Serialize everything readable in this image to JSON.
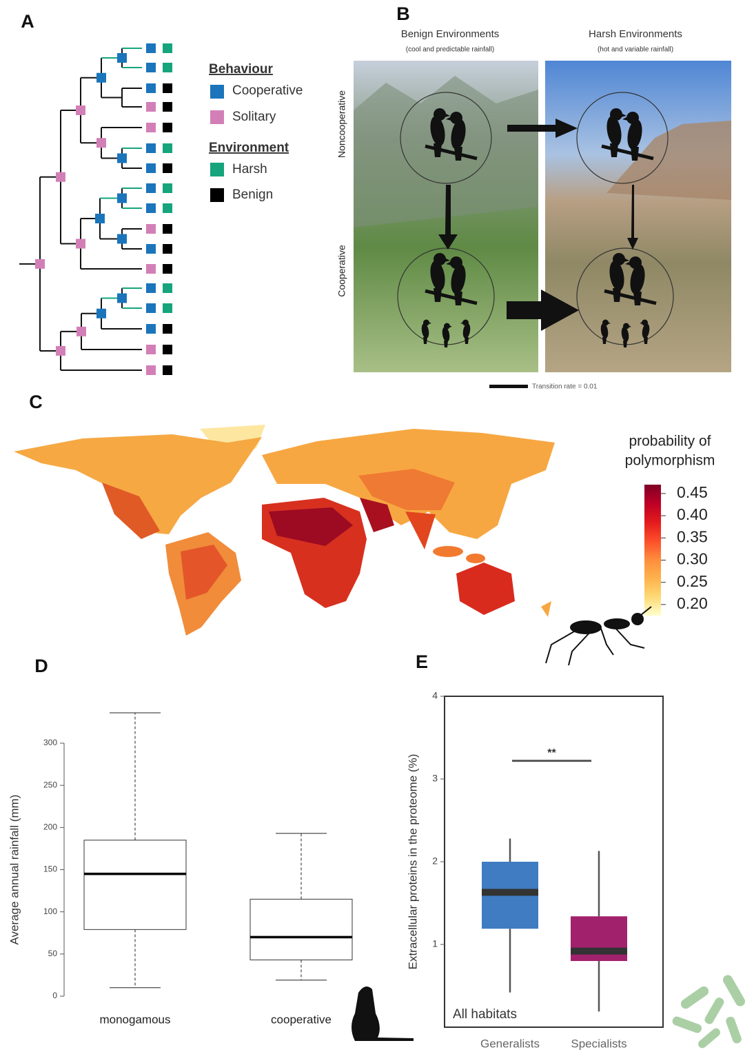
{
  "panel_labels": [
    "A",
    "B",
    "C",
    "D",
    "E"
  ],
  "tree": {
    "legend": {
      "behaviour": {
        "title": "Behaviour",
        "items": [
          {
            "label": "Cooperative",
            "color": "#1b75bb"
          },
          {
            "label": "Solitary",
            "color": "#d37fb7"
          }
        ]
      },
      "environment": {
        "title": "Environment",
        "items": [
          {
            "label": "Harsh",
            "color": "#16a47c"
          },
          {
            "label": "Benign",
            "color": "#000000"
          }
        ]
      }
    },
    "tips": [
      [
        "Cooperative",
        "Harsh"
      ],
      [
        "Cooperative",
        "Harsh"
      ],
      [
        "Cooperative",
        "Benign"
      ],
      [
        "Solitary",
        "Benign"
      ],
      [
        "Solitary",
        "Benign"
      ],
      [
        "Cooperative",
        "Harsh"
      ],
      [
        "Cooperative",
        "Benign"
      ],
      [
        "Cooperative",
        "Harsh"
      ],
      [
        "Cooperative",
        "Harsh"
      ],
      [
        "Solitary",
        "Benign"
      ],
      [
        "Cooperative",
        "Benign"
      ],
      [
        "Solitary",
        "Benign"
      ],
      [
        "Cooperative",
        "Harsh"
      ],
      [
        "Cooperative",
        "Harsh"
      ],
      [
        "Cooperative",
        "Benign"
      ],
      [
        "Solitary",
        "Benign"
      ],
      [
        "Solitary",
        "Benign"
      ]
    ],
    "node_behaviour": [
      "Solitary",
      "Solitary",
      "Solitary",
      "Cooperative",
      "Cooperative",
      "Solitary",
      "Cooperative",
      "Solitary",
      "Cooperative",
      "Cooperative",
      "Cooperative",
      "Solitary",
      "Solitary",
      "Cooperative",
      "Cooperative"
    ]
  },
  "transition_diagram": {
    "columns": [
      {
        "title": "Benign Environments",
        "subtitle": "(cool and predictable rainfall)"
      },
      {
        "title": "Harsh Environments",
        "subtitle": "(hot and variable rainfall)"
      }
    ],
    "rows": [
      "Noncooperative",
      "Cooperative"
    ],
    "scale_label": "Transition rate = 0.01"
  },
  "map": {
    "colorbar": {
      "title": [
        "probability of",
        "polymorphism"
      ],
      "range": [
        0.175,
        0.47
      ],
      "colors": [
        "#ffffcc",
        "#fed976",
        "#feb24c",
        "#fd8d3c",
        "#fc4e2a",
        "#e31a1c",
        "#bd0026",
        "#800026"
      ],
      "ticks": [
        0.45,
        {
          "value": 0.4,
          "label": "0.40"
        },
        0.35,
        {
          "value": 0.3,
          "label": "0.30"
        },
        0.25,
        {
          "value": 0.2,
          "label": "0.20"
        }
      ]
    }
  },
  "chart_data": [
    {
      "type": "box",
      "ylabel": "Average annual rainfall (mm)",
      "categories": [
        "monogamous",
        "cooperative"
      ],
      "stats": [
        {
          "whisker_low": 10,
          "q1": 79,
          "median": 145,
          "q3": 185,
          "whisker_high": 336
        },
        {
          "whisker_low": 19,
          "q1": 43,
          "median": 70,
          "q3": 115,
          "whisker_high": 193
        }
      ],
      "colors": [
        "#ffffff",
        "#ffffff"
      ],
      "ylim": [
        0,
        300
      ],
      "yticks": [
        0,
        50,
        100,
        150,
        200,
        250,
        300
      ]
    },
    {
      "type": "box",
      "ylabel": "Extracellular proteins in the proteome (%)",
      "categories": [
        "Generalists",
        "Specialists"
      ],
      "stats": [
        {
          "whisker_low": 0.42,
          "q1": 1.19,
          "median": 1.63,
          "q3": 2.0,
          "whisker_high": 2.28
        },
        {
          "whisker_low": 0.19,
          "q1": 0.8,
          "median": 0.92,
          "q3": 1.34,
          "whisker_high": 2.13
        }
      ],
      "colors": [
        "#3f7cc2",
        "#a2216c"
      ],
      "ylim": [
        0,
        4
      ],
      "yticks": [
        1,
        2,
        3,
        4
      ],
      "significance": {
        "label": "**",
        "y": 3.22
      },
      "annotation": "All habitats"
    }
  ]
}
